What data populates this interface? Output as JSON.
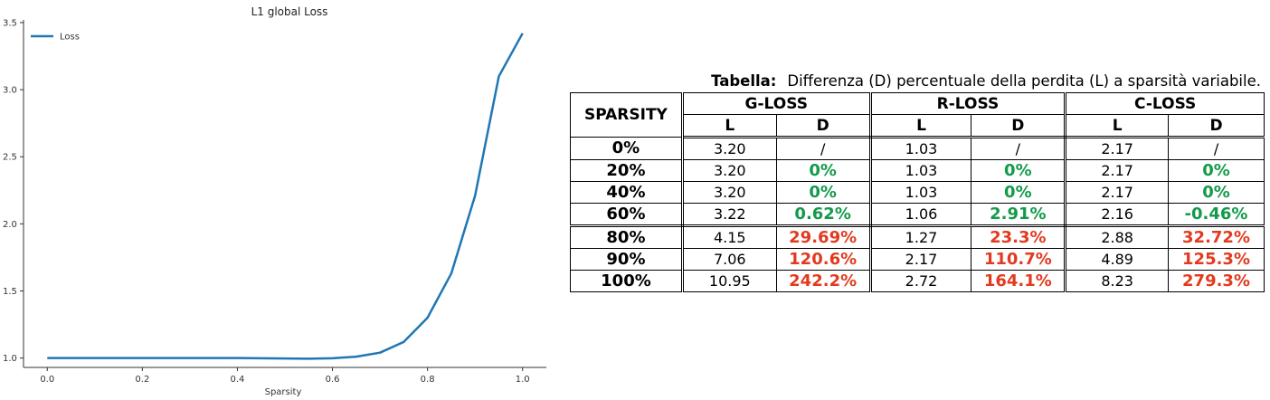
{
  "chart_data": {
    "type": "line",
    "title": "L1 global Loss",
    "xlabel": "Sparsity",
    "ylabel": "",
    "xlim": [
      -0.05,
      1.05
    ],
    "ylim": [
      0.93,
      3.52
    ],
    "xticks": [
      0.0,
      0.2,
      0.4,
      0.6,
      0.8,
      1.0
    ],
    "xtick_labels": [
      "0.0",
      "0.2",
      "0.4",
      "0.6",
      "0.8",
      "1.0"
    ],
    "yticks": [
      1.0,
      1.5,
      2.0,
      2.5,
      3.0,
      3.5
    ],
    "ytick_labels": [
      "1.0",
      "1.5",
      "2.0",
      "2.5",
      "3.0",
      "3.5"
    ],
    "legend": "top-left",
    "grid": false,
    "series": [
      {
        "name": "Loss",
        "color": "#1f77b4",
        "x": [
          0.0,
          0.05,
          0.1,
          0.15,
          0.2,
          0.25,
          0.3,
          0.35,
          0.4,
          0.45,
          0.5,
          0.55,
          0.6,
          0.65,
          0.7,
          0.75,
          0.8,
          0.85,
          0.9,
          0.95,
          1.0
        ],
        "y": [
          1.0,
          1.0,
          1.0,
          1.0,
          1.0,
          1.0,
          1.0,
          1.0,
          1.0,
          0.998,
          0.997,
          0.995,
          0.998,
          1.01,
          1.04,
          1.12,
          1.3,
          1.63,
          2.21,
          3.1,
          3.42
        ]
      }
    ]
  },
  "table": {
    "caption_label": "Tabella:",
    "caption_text": "Differenza (D) percentuale della perdita (L) a sparsità variabile.",
    "sparsity_header": "SPARSITY",
    "groups": [
      "G-LOSS",
      "R-LOSS",
      "C-LOSS"
    ],
    "sub_l": "L",
    "sub_d": "D",
    "rows": [
      {
        "sparsity": "0%",
        "g_l": "3.20",
        "g_d": "/",
        "r_l": "1.03",
        "r_d": "/",
        "c_l": "2.17",
        "c_d": "/"
      },
      {
        "sparsity": "20%",
        "g_l": "3.20",
        "g_d": "0%",
        "r_l": "1.03",
        "r_d": "0%",
        "c_l": "2.17",
        "c_d": "0%"
      },
      {
        "sparsity": "40%",
        "g_l": "3.20",
        "g_d": "0%",
        "r_l": "1.03",
        "r_d": "0%",
        "c_l": "2.17",
        "c_d": "0%"
      },
      {
        "sparsity": "60%",
        "g_l": "3.22",
        "g_d": "0.62%",
        "r_l": "1.06",
        "r_d": "2.91%",
        "c_l": "2.16",
        "c_d": "-0.46%"
      },
      {
        "sparsity": "80%",
        "g_l": "4.15",
        "g_d": "29.69%",
        "r_l": "1.27",
        "r_d": "23.3%",
        "c_l": "2.88",
        "c_d": "32.72%"
      },
      {
        "sparsity": "90%",
        "g_l": "7.06",
        "g_d": "120.6%",
        "r_l": "2.17",
        "r_d": "110.7%",
        "c_l": "4.89",
        "c_d": "125.3%"
      },
      {
        "sparsity": "100%",
        "g_l": "10.95",
        "g_d": "242.2%",
        "r_l": "2.72",
        "r_d": "164.1%",
        "c_l": "8.23",
        "c_d": "279.3%"
      }
    ],
    "colors": {
      "green": "#139a4a",
      "red": "#e23a1f"
    }
  }
}
